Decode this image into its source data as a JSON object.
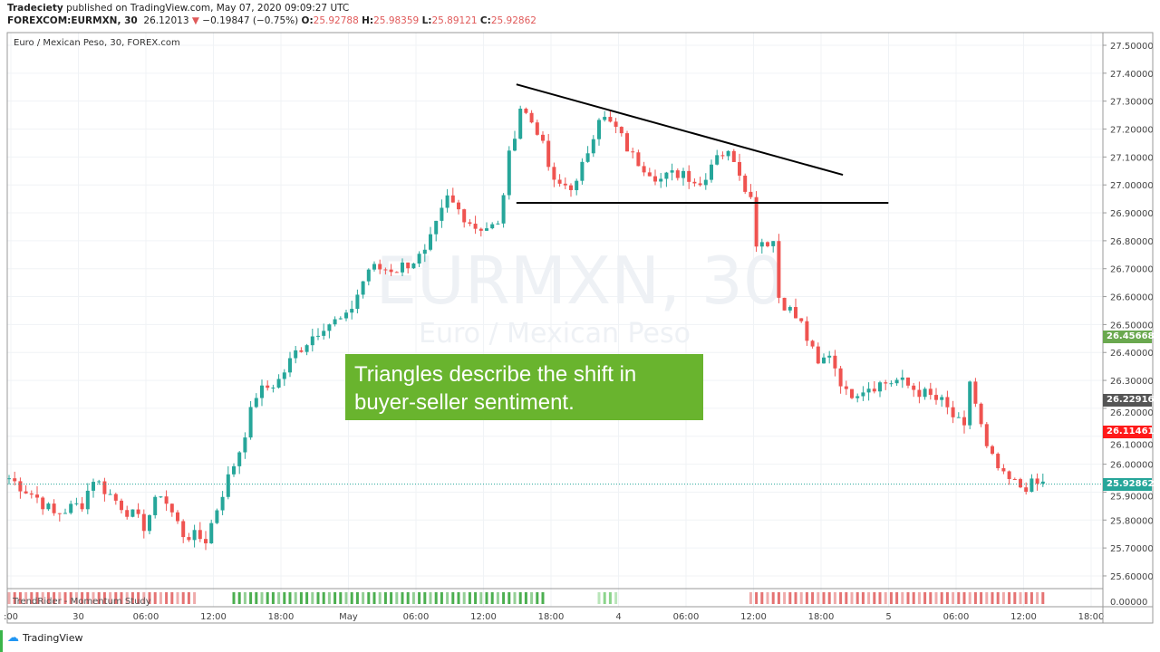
{
  "header": {
    "author": "Tradeciety",
    "published": "published on TradingView.com, May 07, 2020 09:09:27 UTC",
    "symbol": "FOREXCOM:EURMXN, 30",
    "last": "26.12013",
    "change": "−0.19847 (−0.75%)",
    "o_label": "O:",
    "o": "25.92788",
    "h_label": "H:",
    "h": "25.98359",
    "l_label": "L:",
    "l": "25.89121",
    "c_label": "C:",
    "c": "25.92862"
  },
  "legend": "Euro / Mexican Peso, 30, FOREX.com",
  "watermark": {
    "symbol": "EURMXN, 30",
    "name": "Euro / Mexican Peso"
  },
  "annotation": "Triangles describe the shift in buyer-seller sentiment.",
  "indicator": "TrendRider - Momentum Study",
  "footer": "TradingView",
  "price_labels": [
    {
      "value": "26.45668",
      "color": "#6aa84f"
    },
    {
      "value": "26.22916",
      "color": "#555555"
    },
    {
      "value": "26.11461",
      "color": "#ff1a1a"
    },
    {
      "value": "25.92862",
      "color": "#26a69a"
    }
  ],
  "chart_data": {
    "type": "candlestick",
    "ylim": [
      25.55,
      27.55
    ],
    "yticks": [
      "27.50000",
      "27.40000",
      "27.30000",
      "27.20000",
      "27.10000",
      "27.00000",
      "26.90000",
      "26.80000",
      "26.70000",
      "26.60000",
      "26.50000",
      "26.40000",
      "26.30000",
      "26.20000",
      "26.10000",
      "26.00000",
      "25.90000",
      "25.80000",
      "25.70000",
      "25.60000"
    ],
    "indicator_tick": "0.00000",
    "xticks": [
      ":00",
      "30",
      "06:00",
      "12:00",
      "18:00",
      "May",
      "06:00",
      "12:00",
      "18:00",
      "4",
      "06:00",
      "12:00",
      "18:00",
      "5",
      "06:00",
      "12:00",
      "18:00"
    ],
    "candle_count": 185,
    "price_path": [
      [
        0,
        25.95
      ],
      [
        5,
        25.88
      ],
      [
        8,
        25.82
      ],
      [
        13,
        25.86
      ],
      [
        15,
        25.95
      ],
      [
        19,
        25.87
      ],
      [
        24,
        25.78
      ],
      [
        27,
        25.9
      ],
      [
        31,
        25.75
      ],
      [
        35,
        25.73
      ],
      [
        38,
        25.9
      ],
      [
        41,
        26.05
      ],
      [
        44,
        26.25
      ],
      [
        48,
        26.3
      ],
      [
        51,
        26.4
      ],
      [
        56,
        26.5
      ],
      [
        60,
        26.52
      ],
      [
        64,
        26.7
      ],
      [
        69,
        26.7
      ],
      [
        74,
        26.75
      ],
      [
        78,
        26.95
      ],
      [
        83,
        26.85
      ],
      [
        87,
        26.85
      ],
      [
        89,
        27.1
      ],
      [
        91,
        27.28
      ],
      [
        94,
        27.2
      ],
      [
        97,
        27.0
      ],
      [
        101,
        27.0
      ],
      [
        105,
        27.25
      ],
      [
        108,
        27.2
      ],
      [
        111,
        27.1
      ],
      [
        116,
        27.02
      ],
      [
        120,
        27.05
      ],
      [
        123,
        27.0
      ],
      [
        126,
        27.12
      ],
      [
        129,
        27.1
      ],
      [
        132,
        26.95
      ],
      [
        133,
        26.8
      ],
      [
        136,
        26.8
      ],
      [
        137,
        26.6
      ],
      [
        141,
        26.5
      ],
      [
        144,
        26.35
      ],
      [
        146,
        26.4
      ],
      [
        149,
        26.25
      ],
      [
        153,
        26.28
      ],
      [
        158,
        26.3
      ],
      [
        166,
        26.22
      ],
      [
        170,
        26.12
      ],
      [
        171,
        26.3
      ],
      [
        174,
        26.05
      ],
      [
        177,
        25.95
      ],
      [
        180,
        25.92
      ],
      [
        184,
        25.93
      ]
    ],
    "trendlines": [
      {
        "from": [
          90.3,
          27.36
        ],
        "to": [
          148.4,
          27.036
        ],
        "label": "descending resistance"
      },
      {
        "from": [
          90.3,
          26.936
        ],
        "to": [
          156.5,
          26.936
        ],
        "label": "horizontal support"
      }
    ],
    "current_price": 25.92862,
    "momentum": [
      {
        "from": 0,
        "to": 33,
        "color": "#e57373"
      },
      {
        "from": 40,
        "to": 95,
        "color": "#4caf50"
      },
      {
        "from": 105,
        "to": 108,
        "color": "#8bd48b"
      },
      {
        "from": 132,
        "to": 184,
        "color": "#e57373"
      }
    ]
  }
}
